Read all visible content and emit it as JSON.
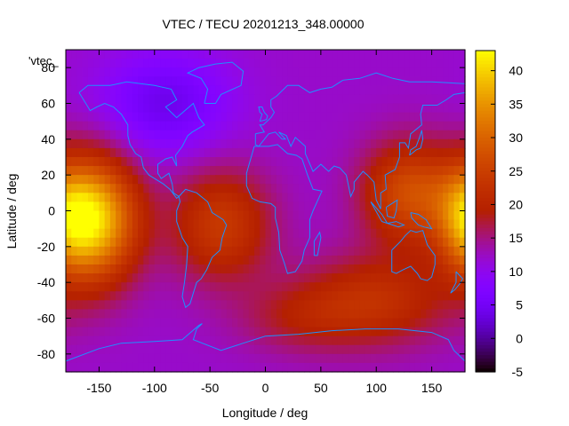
{
  "chart_data": {
    "type": "heatmap",
    "title": "VTEC / TECU 20201213_348.00000",
    "xlabel": "Longitude / deg",
    "ylabel": "Latitude / deg",
    "key_label": "'vtec_",
    "xlim": [
      -180,
      180
    ],
    "ylim": [
      -90,
      90
    ],
    "xticks": [
      "-150",
      "-100",
      "-50",
      "0",
      "50",
      "100",
      "150"
    ],
    "yticks": [
      "-80",
      "-60",
      "-40",
      "-20",
      "0",
      "20",
      "40",
      "60",
      "80"
    ],
    "colorbar": {
      "range": [
        -5,
        43
      ],
      "ticks": [
        "-5",
        "0",
        "5",
        "10",
        "15",
        "20",
        "25",
        "30",
        "35",
        "40"
      ]
    },
    "background_level": 12,
    "features": [
      {
        "lon": -155,
        "lat": -5,
        "peak": 40,
        "slon": 28,
        "slat": 24
      },
      {
        "lon": -40,
        "lat": -8,
        "peak": 24,
        "slon": 32,
        "slat": 22
      },
      {
        "lon": 130,
        "lat": 10,
        "peak": 27,
        "slon": 30,
        "slat": 20
      },
      {
        "lon": 180,
        "lat": -5,
        "peak": 21,
        "slon": 18,
        "slat": 20
      },
      {
        "lon": 100,
        "lat": -50,
        "peak": 22,
        "slon": 48,
        "slat": 18
      },
      {
        "lon": 30,
        "lat": -60,
        "peak": 17,
        "slon": 40,
        "slat": 14
      },
      {
        "lon": -90,
        "lat": 60,
        "peak": 4,
        "slon": 40,
        "slat": 20
      }
    ]
  }
}
